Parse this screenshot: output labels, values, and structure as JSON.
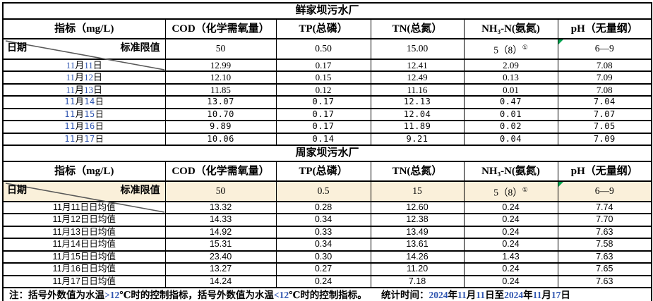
{
  "colors": {
    "accent_blue": "#2f55b0",
    "limit_row_bg": "#faf0da",
    "flag_green": "#00a550",
    "diagonal": "#595959",
    "border": "#000000"
  },
  "plants": [
    {
      "title": "鲜家坝污水厂",
      "headers": {
        "indicator": "指标（mg/L)",
        "cols": [
          "COD（化学需氧量）",
          "TP(总磷）",
          "TN(总氮）",
          "NH₃-N(氨氮)",
          "pH（无量纲）"
        ]
      },
      "corner": {
        "date_label": "日期",
        "limit_label": "标准限值"
      },
      "blue_date_digits": true,
      "limit_row_tinted": false,
      "limits": [
        {
          "text": "50"
        },
        {
          "text": "0.50"
        },
        {
          "text": "15.00"
        },
        {
          "text": "5（8）",
          "sup": "①"
        },
        {
          "text": "6—9",
          "flag": true
        }
      ],
      "rows": [
        {
          "date": "11月11日",
          "values": [
            "12.99",
            "0.17",
            "12.41",
            "2.09",
            "7.08"
          ]
        },
        {
          "date": "11月12日",
          "values": [
            "12.10",
            "0.15",
            "12.49",
            "0.13",
            "7.09"
          ]
        },
        {
          "date": "11月13日",
          "values": [
            "11.85",
            "0.12",
            "11.16",
            "0.01",
            "7.08"
          ]
        },
        {
          "date": "11月14日",
          "values": [
            "13.07",
            "0.17",
            "12.13",
            "0.47",
            "7.04"
          ]
        },
        {
          "date": "11月15日",
          "values": [
            "10.70",
            "0.17",
            "12.04",
            "0.01",
            "7.07"
          ]
        },
        {
          "date": "11月16日",
          "values": [
            "9.89",
            "0.17",
            "11.89",
            "0.02",
            "7.05"
          ]
        },
        {
          "date": "11月17日",
          "values": [
            "10.06",
            "0.14",
            "9.21",
            "0.04",
            "7.09"
          ]
        }
      ]
    },
    {
      "title": "周家坝污水厂",
      "headers": {
        "indicator": "指标（mg/L)",
        "cols": [
          "COD（化学需氧量）",
          "TP(总磷）",
          "TN(总氮）",
          "NH₃-N(氨氮)",
          "pH（无量纲）"
        ]
      },
      "corner": {
        "date_label": "日期",
        "limit_label": "标准限值"
      },
      "blue_date_digits": false,
      "limit_row_tinted": true,
      "limits": [
        {
          "text": "50"
        },
        {
          "text": "0.5"
        },
        {
          "text": "15"
        },
        {
          "text": "5（8）",
          "sup": "①"
        },
        {
          "text": "6—9",
          "flag": true
        }
      ],
      "rows": [
        {
          "date": "11月11日日均值",
          "values": [
            "13.32",
            "0.28",
            "12.60",
            "0.24",
            "7.74"
          ]
        },
        {
          "date": "11月12日日均值",
          "values": [
            "14.33",
            "0.34",
            "12.38",
            "0.24",
            "7.70"
          ]
        },
        {
          "date": "11月13日日均值",
          "values": [
            "14.92",
            "0.33",
            "13.49",
            "0.24",
            "7.63"
          ]
        },
        {
          "date": "11月14日日均值",
          "values": [
            "15.31",
            "0.34",
            "13.61",
            "0.24",
            "7.58"
          ]
        },
        {
          "date": "11月15日日均值",
          "values": [
            "23.40",
            "0.30",
            "14.26",
            "1.43",
            "7.63"
          ]
        },
        {
          "date": "11月16日日均值",
          "values": [
            "13.27",
            "0.27",
            "11.20",
            "0.24",
            "7.65"
          ]
        },
        {
          "date": "11月17日日均值",
          "values": [
            "14.24",
            "0.24",
            "7.18",
            "0.24",
            "7.63"
          ]
        }
      ]
    }
  ],
  "note": {
    "text": "注：括号外数值为水温>12℃时的控制指标，括号外数值为水温<12℃时的控制指标。　　统计时间：2024年11月11日至2024年11月17日"
  }
}
